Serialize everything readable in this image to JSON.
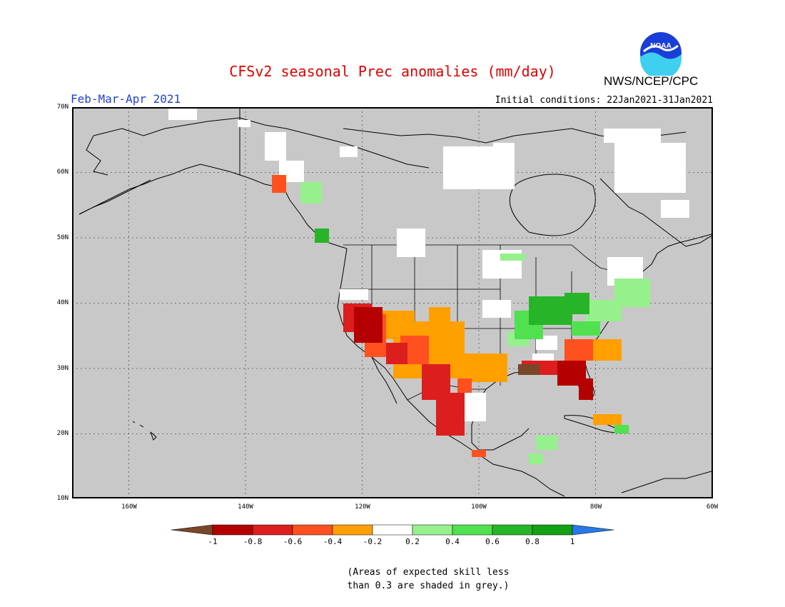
{
  "header": {
    "title": "CFSv2 seasonal Prec anomalies (mm/day)",
    "agency": "NWS/NCEP/CPC",
    "period": "Feb-Mar-Apr 2021",
    "initial_conditions": "Initial conditions: 22Jan2021-31Jan2021",
    "logo_text": "NOAA"
  },
  "map": {
    "region": "North America",
    "lat_labels": [
      "70N",
      "60N",
      "50N",
      "40N",
      "30N",
      "20N",
      "10N"
    ],
    "lon_labels": [
      "160W",
      "140W",
      "120W",
      "100W",
      "80W",
      "60W"
    ],
    "background_color": "#c8c8c8",
    "anomaly_areas": [
      {
        "name": "California-Southwest dry",
        "category": "-1 to -0.8",
        "color": "#b40000"
      },
      {
        "name": "Desert Southwest dry",
        "category": "-0.4 to -0.2",
        "color": "#ffa000"
      },
      {
        "name": "Western Mexico dry",
        "category": "-0.8 to -0.6",
        "color": "#dc1e1e"
      },
      {
        "name": "Florida-Gulf Coast dry",
        "category": "-1 to -0.8",
        "color": "#b40000"
      },
      {
        "name": "Ohio Valley wet",
        "category": "0.6 to 0.8",
        "color": "#28b428"
      },
      {
        "name": "Mid-Atlantic wet",
        "category": "0.2 to 0.4",
        "color": "#96f08c"
      }
    ]
  },
  "colorbar": {
    "ticks": [
      "-1",
      "-0.8",
      "-0.6",
      "-0.4",
      "-0.2",
      "0.2",
      "0.4",
      "0.6",
      "0.8",
      "1"
    ],
    "colors": [
      "#784628",
      "#b40000",
      "#dc1e1e",
      "#ff5020",
      "#ffa000",
      "#ffffff",
      "#96f08c",
      "#50e050",
      "#28b428",
      "#14a014",
      "#2878e6"
    ]
  },
  "note": {
    "line1": "(Areas of expected skill less",
    "line2": "than 0.3 are shaded in grey.)"
  }
}
